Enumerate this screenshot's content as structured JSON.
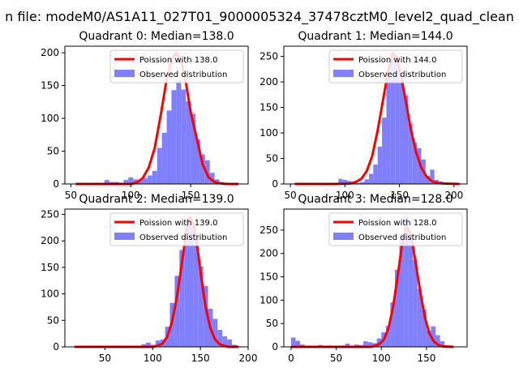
{
  "figure_title": "n file: modeM0/AS1A11_027T01_9000005324_37478cztM0_level2_quad_clean",
  "legend_observed": "Observed distribution",
  "colors": {
    "poisson": "#ff0000",
    "hist": "#8080ff",
    "axis": "#000000"
  },
  "chart_data": [
    {
      "type": "bar",
      "title": "Quadrant 0: Median=138.0",
      "poisson_label": "Poission with 138.0",
      "median": 138.0,
      "xlim": [
        45,
        198
      ],
      "ylim": [
        0,
        210
      ],
      "xticks": [
        50,
        100,
        150
      ],
      "yticks": [
        0,
        50,
        100,
        150,
        200
      ],
      "bin_width": 4,
      "bins_x": [
        54,
        58,
        62,
        66,
        70,
        74,
        78,
        82,
        86,
        90,
        94,
        98,
        102,
        106,
        110,
        114,
        118,
        122,
        126,
        130,
        134,
        138,
        142,
        146,
        150,
        154,
        158,
        162,
        166,
        170,
        174,
        178,
        182
      ],
      "counts": [
        1,
        1,
        1,
        1,
        2,
        1,
        6,
        3,
        3,
        2,
        6,
        10,
        7,
        6,
        9,
        13,
        20,
        55,
        78,
        112,
        143,
        158,
        144,
        126,
        107,
        68,
        45,
        36,
        17,
        7,
        3,
        2,
        1
      ],
      "curve_x": [
        54,
        70,
        90,
        100,
        105,
        110,
        115,
        120,
        125,
        130,
        134,
        138,
        142,
        146,
        150,
        155,
        160,
        165,
        170,
        175,
        180,
        190
      ],
      "curve_y": [
        0,
        0,
        0,
        0,
        2,
        9,
        25,
        55,
        105,
        160,
        190,
        200,
        188,
        155,
        110,
        70,
        30,
        10,
        3,
        1,
        0,
        0
      ]
    },
    {
      "type": "bar",
      "title": "Quadrant 1: Median=144.0",
      "poisson_label": "Poission with 144.0",
      "median": 144.0,
      "xlim": [
        44,
        212
      ],
      "ylim": [
        0,
        270
      ],
      "xticks": [
        50,
        100,
        150,
        200
      ],
      "yticks": [
        0,
        50,
        100,
        150,
        200,
        250
      ],
      "bin_width": 4,
      "bins_x": [
        54,
        58,
        62,
        66,
        70,
        74,
        78,
        82,
        86,
        90,
        94,
        98,
        102,
        106,
        110,
        114,
        118,
        122,
        126,
        130,
        134,
        138,
        142,
        146,
        150,
        154,
        158,
        162,
        166,
        170,
        174,
        178,
        182,
        186,
        190,
        194,
        198,
        202
      ],
      "counts": [
        1,
        1,
        1,
        1,
        1,
        1,
        1,
        1,
        1,
        2,
        10,
        8,
        6,
        3,
        2,
        4,
        9,
        20,
        38,
        73,
        130,
        210,
        258,
        240,
        202,
        174,
        118,
        82,
        70,
        48,
        16,
        28,
        8,
        5,
        2,
        1,
        1,
        1
      ],
      "curve_x": [
        54,
        90,
        105,
        110,
        115,
        120,
        125,
        130,
        135,
        140,
        144,
        148,
        152,
        156,
        160,
        165,
        170,
        175,
        180,
        185,
        190,
        205
      ],
      "curve_y": [
        0,
        0,
        1,
        4,
        10,
        25,
        55,
        105,
        165,
        225,
        256,
        245,
        205,
        160,
        112,
        64,
        32,
        14,
        5,
        2,
        1,
        0
      ]
    },
    {
      "type": "bar",
      "title": "Quadrant 2: Median=139.0",
      "poisson_label": "Poission with 139.0",
      "median": 139.0,
      "xlim": [
        8,
        200
      ],
      "ylim": [
        0,
        260
      ],
      "xticks": [
        50,
        100,
        150,
        200
      ],
      "yticks": [
        0,
        50,
        100,
        150,
        200,
        250
      ],
      "bin_width": 5,
      "bins_x": [
        18,
        23,
        28,
        33,
        38,
        43,
        48,
        53,
        58,
        63,
        68,
        73,
        78,
        83,
        88,
        93,
        98,
        103,
        108,
        113,
        118,
        123,
        128,
        133,
        138,
        143,
        148,
        153,
        158,
        163,
        168,
        173,
        178,
        183,
        188
      ],
      "counts": [
        1,
        1,
        1,
        1,
        1,
        1,
        1,
        1,
        1,
        1,
        1,
        1,
        1,
        2,
        5,
        8,
        4,
        12,
        14,
        38,
        83,
        134,
        183,
        228,
        230,
        205,
        152,
        115,
        72,
        53,
        32,
        20,
        14,
        4,
        1
      ],
      "curve_x": [
        18,
        80,
        100,
        105,
        110,
        115,
        120,
        125,
        130,
        135,
        139,
        143,
        147,
        151,
        155,
        160,
        165,
        170,
        175,
        180,
        190
      ],
      "curve_y": [
        0,
        0,
        0,
        2,
        6,
        18,
        45,
        90,
        150,
        215,
        245,
        230,
        185,
        130,
        80,
        38,
        15,
        5,
        2,
        0,
        0
      ]
    },
    {
      "type": "bar",
      "title": "Quadrant 3: Median=128.0",
      "poisson_label": "Poission with 128.0",
      "median": 128.0,
      "xlim": [
        -8,
        195
      ],
      "ylim": [
        0,
        295
      ],
      "xticks": [
        0,
        50,
        100,
        150
      ],
      "yticks": [
        0,
        50,
        100,
        150,
        200,
        250
      ],
      "bin_width": 5,
      "bins_x": [
        0,
        5,
        10,
        15,
        20,
        25,
        30,
        35,
        40,
        45,
        50,
        55,
        60,
        65,
        70,
        75,
        80,
        85,
        90,
        95,
        100,
        105,
        110,
        115,
        120,
        125,
        130,
        135,
        140,
        145,
        150,
        155,
        160,
        165,
        170,
        175,
        180
      ],
      "counts": [
        20,
        13,
        5,
        2,
        1,
        1,
        4,
        1,
        3,
        2,
        2,
        3,
        7,
        2,
        5,
        4,
        12,
        10,
        8,
        18,
        31,
        45,
        95,
        165,
        242,
        282,
        236,
        186,
        124,
        80,
        35,
        44,
        25,
        12,
        3,
        2,
        1
      ],
      "curve_x": [
        0,
        70,
        88,
        93,
        98,
        103,
        108,
        113,
        118,
        123,
        128,
        133,
        138,
        143,
        148,
        153,
        158,
        163,
        168,
        180
      ],
      "curve_y": [
        0,
        0,
        0,
        2,
        6,
        16,
        40,
        85,
        150,
        220,
        258,
        240,
        180,
        120,
        65,
        30,
        12,
        4,
        1,
        0
      ]
    }
  ]
}
